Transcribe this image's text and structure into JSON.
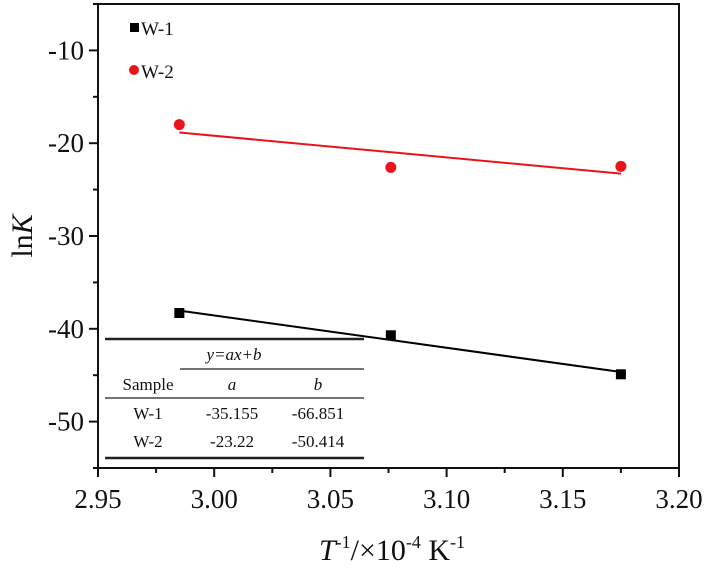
{
  "chart_data": {
    "type": "scatter",
    "xlabel": "T-1/×10-4 K-1",
    "ylabel": "lnK",
    "xlim": [
      2.95,
      3.2
    ],
    "ylim": [
      -55,
      -5
    ],
    "x_ticks": [
      "2.95",
      "3.00",
      "3.05",
      "3.10",
      "3.15",
      "3.20"
    ],
    "y_ticks": [
      "-10",
      "-20",
      "-30",
      "-40",
      "-50"
    ],
    "grid": false,
    "legend_position": "top-left",
    "series": [
      {
        "name": "W-1",
        "marker": "square",
        "color": "#000000",
        "points": [
          {
            "x": 2.985,
            "y": -38.3
          },
          {
            "x": 3.076,
            "y": -40.7
          },
          {
            "x": 3.175,
            "y": -44.9
          }
        ],
        "fit": {
          "slope": -35.155,
          "intercept": -66.851
        }
      },
      {
        "name": "W-2",
        "marker": "circle",
        "color": "#e8141a",
        "points": [
          {
            "x": 2.985,
            "y": -18.0
          },
          {
            "x": 3.076,
            "y": -22.6
          },
          {
            "x": 3.175,
            "y": -22.5
          }
        ],
        "fit": {
          "slope": -23.22,
          "intercept": -50.414
        }
      }
    ],
    "table": {
      "title": "y=ax+b",
      "headers": [
        "Sample",
        "a",
        "b"
      ],
      "rows": [
        [
          "W-1",
          "-35.155",
          "-66.851"
        ],
        [
          "W-2",
          "-23.22",
          "-50.414"
        ]
      ]
    }
  }
}
